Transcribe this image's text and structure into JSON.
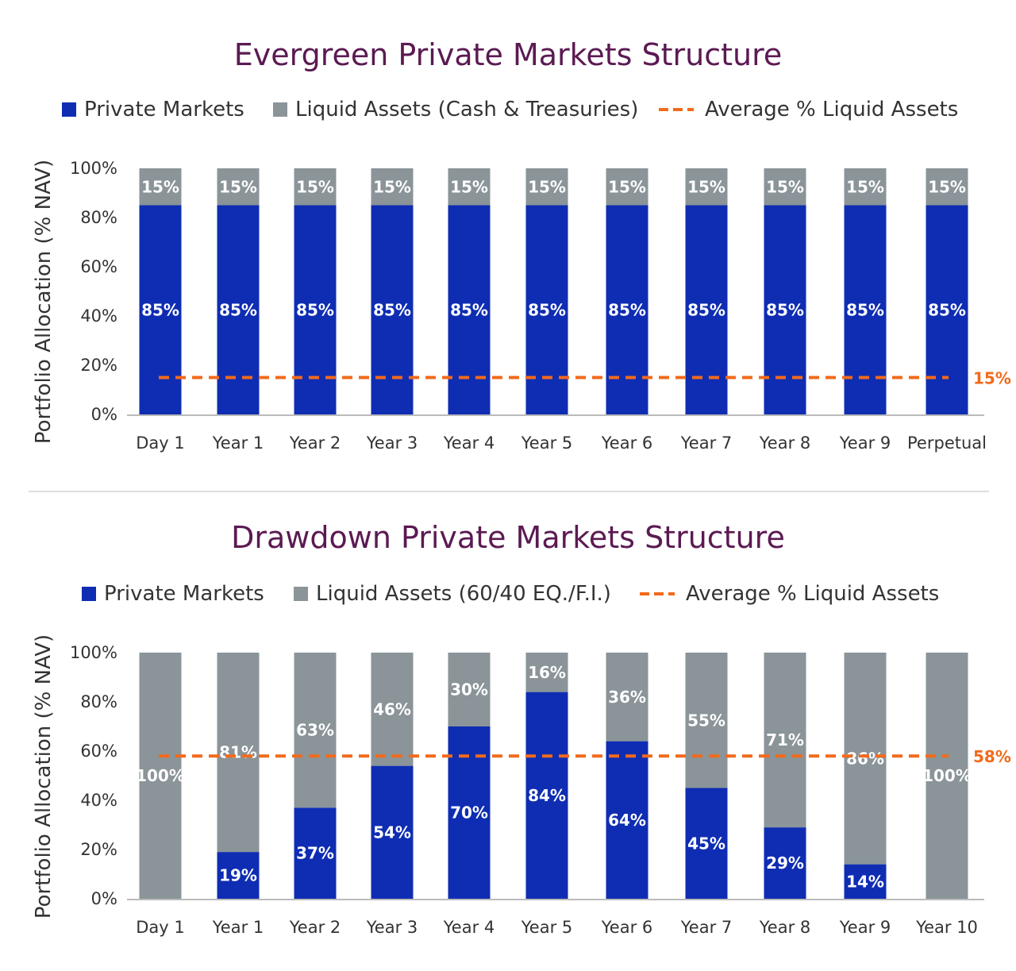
{
  "chart_data": [
    {
      "type": "bar",
      "stacked": true,
      "title": "Evergreen Private Markets Structure",
      "ylabel": "Portfolio Allocation (% NAV)",
      "ylim": [
        0,
        100
      ],
      "yticks": [
        "0%",
        "20%",
        "40%",
        "60%",
        "80%",
        "100%"
      ],
      "categories": [
        "Day 1",
        "Year 1",
        "Year 2",
        "Year 3",
        "Year 4",
        "Year 5",
        "Year 6",
        "Year 7",
        "Year 8",
        "Year 9",
        "Perpetual"
      ],
      "series": [
        {
          "name": "Private Markets",
          "color": "#0f2db3",
          "values": [
            85,
            85,
            85,
            85,
            85,
            85,
            85,
            85,
            85,
            85,
            85
          ],
          "labels": [
            "85%",
            "85%",
            "85%",
            "85%",
            "85%",
            "85%",
            "85%",
            "85%",
            "85%",
            "85%",
            "85%"
          ]
        },
        {
          "name": "Liquid Assets (Cash & Treasuries)",
          "color": "#8a9499",
          "values": [
            15,
            15,
            15,
            15,
            15,
            15,
            15,
            15,
            15,
            15,
            15
          ],
          "labels": [
            "15%",
            "15%",
            "15%",
            "15%",
            "15%",
            "15%",
            "15%",
            "15%",
            "15%",
            "15%",
            "15%"
          ]
        }
      ],
      "average_line": {
        "name": "Average % Liquid Assets",
        "value": 15,
        "label": "15%",
        "color": "#f26a1b"
      },
      "legend": "top"
    },
    {
      "type": "bar",
      "stacked": true,
      "title": "Drawdown Private Markets Structure",
      "ylabel": "Portfolio Allocation (% NAV)",
      "ylim": [
        0,
        100
      ],
      "yticks": [
        "0%",
        "20%",
        "40%",
        "60%",
        "80%",
        "100%"
      ],
      "categories": [
        "Day 1",
        "Year 1",
        "Year 2",
        "Year 3",
        "Year 4",
        "Year 5",
        "Year 6",
        "Year 7",
        "Year 8",
        "Year 9",
        "Year 10"
      ],
      "series": [
        {
          "name": "Private Markets",
          "color": "#0f2db3",
          "values": [
            0,
            19,
            37,
            54,
            70,
            84,
            64,
            45,
            29,
            14,
            0
          ],
          "labels": [
            "",
            "19%",
            "37%",
            "54%",
            "70%",
            "84%",
            "64%",
            "45%",
            "29%",
            "14%",
            ""
          ]
        },
        {
          "name": "Liquid Assets (60/40 EQ./F.I.)",
          "color": "#8a9499",
          "values": [
            100,
            81,
            63,
            46,
            30,
            16,
            36,
            55,
            71,
            86,
            100
          ],
          "labels": [
            "100%",
            "81%",
            "63%",
            "46%",
            "30%",
            "16%",
            "36%",
            "55%",
            "71%",
            "86%",
            "100%"
          ]
        }
      ],
      "average_line": {
        "name": "Average % Liquid Assets",
        "value": 58,
        "label": "58%",
        "color": "#f26a1b"
      },
      "legend": "top"
    }
  ]
}
